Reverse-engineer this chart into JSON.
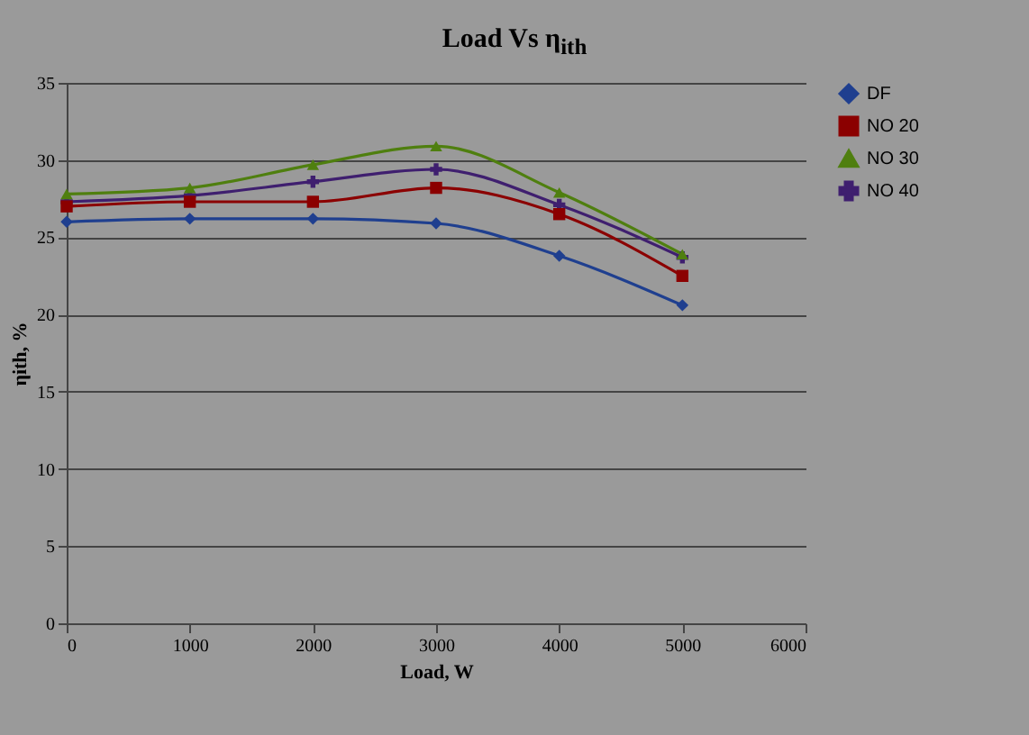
{
  "chart_data": {
    "type": "line",
    "title": "Load Vs η$_{ith}$",
    "xlabel": "Load, W",
    "ylabel": "ηith, %",
    "x": [
      0,
      1000,
      2000,
      3000,
      4000,
      5000
    ],
    "series": [
      {
        "name": "DF",
        "color": "#1f3f8f",
        "marker": "diamond",
        "values": [
          26.0,
          26.2,
          26.2,
          25.9,
          23.8,
          20.6
        ]
      },
      {
        "name": "NO 20",
        "color": "#8b0000",
        "marker": "square",
        "values": [
          27.0,
          27.3,
          27.3,
          28.2,
          26.5,
          22.5
        ]
      },
      {
        "name": "NO 30",
        "color": "#4f7f0f",
        "marker": "triangle",
        "values": [
          27.8,
          28.2,
          29.7,
          30.9,
          27.9,
          23.9
        ]
      },
      {
        "name": "NO 40",
        "color": "#3f1f6f",
        "marker": "cross",
        "values": [
          27.3,
          27.7,
          28.6,
          29.4,
          27.1,
          23.7
        ]
      }
    ],
    "xlim": [
      0,
      6000
    ],
    "xticks": [
      0,
      1000,
      2000,
      3000,
      4000,
      5000,
      6000
    ],
    "ylim": [
      0,
      35
    ],
    "yticks": [
      0,
      5,
      10,
      15,
      20,
      25,
      30,
      35
    ],
    "grid": "y",
    "legend": "right"
  }
}
